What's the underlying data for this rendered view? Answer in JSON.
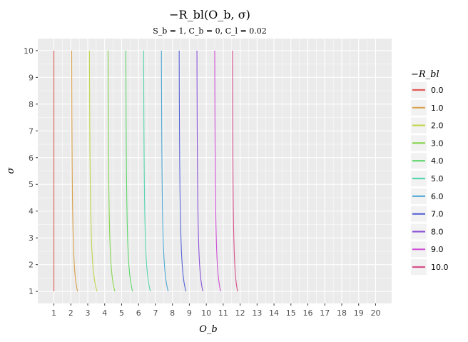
{
  "chart_data": {
    "type": "line",
    "title": "−R_bl(O_b, σ)",
    "subtitle": "S_b = 1, C_b = 0, C_l = 0.02",
    "xlabel": "O_b",
    "ylabel": "σ",
    "xlim": [
      0.05,
      20.95
    ],
    "ylim": [
      0.55,
      10.45
    ],
    "x_ticks": [
      1,
      2,
      3,
      4,
      5,
      6,
      7,
      8,
      9,
      10,
      11,
      12,
      13,
      14,
      15,
      16,
      17,
      18,
      19,
      20
    ],
    "y_ticks": [
      1,
      2,
      3,
      4,
      5,
      6,
      7,
      8,
      9,
      10
    ],
    "grid": true,
    "legend_title": "−R_bl",
    "legend_position": "right",
    "series": [
      {
        "name": "0.0",
        "color": "#e15a55",
        "x_at_sigma10": 1.0,
        "x_at_sigma1": 1.0
      },
      {
        "name": "1.0",
        "color": "#d9a14a",
        "x_at_sigma10": 2.05,
        "x_at_sigma1": 2.4
      },
      {
        "name": "2.0",
        "color": "#c1d44e",
        "x_at_sigma10": 3.1,
        "x_at_sigma1": 3.55
      },
      {
        "name": "3.0",
        "color": "#86d650",
        "x_at_sigma10": 4.2,
        "x_at_sigma1": 4.6
      },
      {
        "name": "4.0",
        "color": "#5dd66a",
        "x_at_sigma10": 5.25,
        "x_at_sigma1": 5.65
      },
      {
        "name": "5.0",
        "color": "#55d6b0",
        "x_at_sigma10": 6.3,
        "x_at_sigma1": 6.7
      },
      {
        "name": "6.0",
        "color": "#4ea8d4",
        "x_at_sigma10": 7.35,
        "x_at_sigma1": 7.75
      },
      {
        "name": "7.0",
        "color": "#5563d6",
        "x_at_sigma10": 8.4,
        "x_at_sigma1": 8.8
      },
      {
        "name": "8.0",
        "color": "#8a50d6",
        "x_at_sigma10": 9.45,
        "x_at_sigma1": 9.8
      },
      {
        "name": "9.0",
        "color": "#cf4fd6",
        "x_at_sigma10": 10.5,
        "x_at_sigma1": 10.85
      },
      {
        "name": "10.0",
        "color": "#d9508a",
        "x_at_sigma10": 11.55,
        "x_at_sigma1": 11.85
      }
    ]
  }
}
